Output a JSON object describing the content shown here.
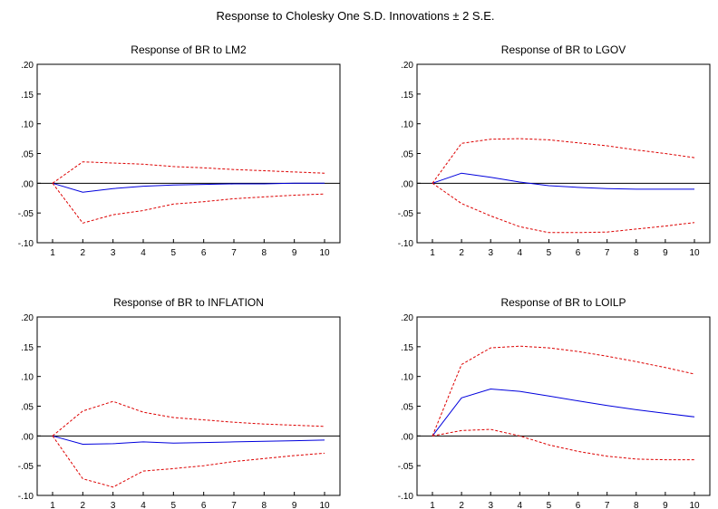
{
  "figure_title": "Response to Cholesky One S.D. Innovations ± 2 S.E.",
  "colors": {
    "response": "#0000dd",
    "bands": "#dd0000",
    "zero_line": "#000000",
    "frame": "#000000"
  },
  "chart_data": [
    {
      "type": "line",
      "title": "Response of BR to LM2",
      "x": [
        1,
        2,
        3,
        4,
        5,
        6,
        7,
        8,
        9,
        10
      ],
      "ylim": [
        -0.1,
        0.2
      ],
      "yticks": [
        ".20",
        ".15",
        ".10",
        ".05",
        ".00",
        "-.05",
        "-.10"
      ],
      "xticks": [
        "1",
        "2",
        "3",
        "4",
        "5",
        "6",
        "7",
        "8",
        "9",
        "10"
      ],
      "grid": false,
      "series": [
        {
          "role": "response",
          "style": "solid",
          "values": [
            0,
            -0.015,
            -0.009,
            -0.005,
            -0.003,
            -0.002,
            -0.001,
            -0.001,
            0.0,
            0.0
          ]
        },
        {
          "role": "upper",
          "style": "dashed",
          "values": [
            0,
            0.036,
            0.034,
            0.032,
            0.028,
            0.026,
            0.023,
            0.021,
            0.019,
            0.017
          ]
        },
        {
          "role": "lower",
          "style": "dashed",
          "values": [
            0,
            -0.067,
            -0.053,
            -0.046,
            -0.035,
            -0.031,
            -0.026,
            -0.023,
            -0.02,
            -0.018
          ]
        }
      ]
    },
    {
      "type": "line",
      "title": "Response of BR to LGOV",
      "x": [
        1,
        2,
        3,
        4,
        5,
        6,
        7,
        8,
        9,
        10
      ],
      "ylim": [
        -0.1,
        0.2
      ],
      "yticks": [
        ".20",
        ".15",
        ".10",
        ".05",
        ".00",
        "-.05",
        "-.10"
      ],
      "xticks": [
        "1",
        "2",
        "3",
        "4",
        "5",
        "6",
        "7",
        "8",
        "9",
        "10"
      ],
      "grid": false,
      "series": [
        {
          "role": "response",
          "style": "solid",
          "values": [
            0,
            0.017,
            0.01,
            0.002,
            -0.004,
            -0.007,
            -0.009,
            -0.01,
            -0.01,
            -0.01
          ]
        },
        {
          "role": "upper",
          "style": "dashed",
          "values": [
            0,
            0.067,
            0.074,
            0.075,
            0.073,
            0.068,
            0.063,
            0.056,
            0.05,
            0.043
          ]
        },
        {
          "role": "lower",
          "style": "dashed",
          "values": [
            0,
            -0.034,
            -0.055,
            -0.073,
            -0.083,
            -0.083,
            -0.082,
            -0.077,
            -0.072,
            -0.066
          ]
        }
      ]
    },
    {
      "type": "line",
      "title": "Response of BR to INFLATION",
      "x": [
        1,
        2,
        3,
        4,
        5,
        6,
        7,
        8,
        9,
        10
      ],
      "ylim": [
        -0.1,
        0.2
      ],
      "yticks": [
        ".20",
        ".15",
        ".10",
        ".05",
        ".00",
        "-.05",
        "-.10"
      ],
      "xticks": [
        "1",
        "2",
        "3",
        "4",
        "5",
        "6",
        "7",
        "8",
        "9",
        "10"
      ],
      "grid": false,
      "series": [
        {
          "role": "response",
          "style": "solid",
          "values": [
            0,
            -0.014,
            -0.013,
            -0.01,
            -0.012,
            -0.011,
            -0.01,
            -0.009,
            -0.008,
            -0.007
          ]
        },
        {
          "role": "upper",
          "style": "dashed",
          "values": [
            0,
            0.042,
            0.058,
            0.04,
            0.031,
            0.027,
            0.023,
            0.02,
            0.018,
            0.016
          ]
        },
        {
          "role": "lower",
          "style": "dashed",
          "values": [
            0,
            -0.072,
            -0.086,
            -0.059,
            -0.055,
            -0.05,
            -0.043,
            -0.038,
            -0.033,
            -0.029
          ]
        }
      ]
    },
    {
      "type": "line",
      "title": "Response of BR to LOILP",
      "x": [
        1,
        2,
        3,
        4,
        5,
        6,
        7,
        8,
        9,
        10
      ],
      "ylim": [
        -0.1,
        0.2
      ],
      "yticks": [
        ".20",
        ".15",
        ".10",
        ".05",
        ".00",
        "-.05",
        "-.10"
      ],
      "xticks": [
        "1",
        "2",
        "3",
        "4",
        "5",
        "6",
        "7",
        "8",
        "9",
        "10"
      ],
      "grid": false,
      "series": [
        {
          "role": "response",
          "style": "solid",
          "values": [
            0,
            0.064,
            0.079,
            0.075,
            0.067,
            0.059,
            0.051,
            0.044,
            0.038,
            0.032
          ]
        },
        {
          "role": "upper",
          "style": "dashed",
          "values": [
            0,
            0.12,
            0.148,
            0.151,
            0.148,
            0.142,
            0.134,
            0.125,
            0.115,
            0.104
          ]
        },
        {
          "role": "lower",
          "style": "dashed",
          "values": [
            0,
            0.009,
            0.011,
            0.0,
            -0.015,
            -0.026,
            -0.034,
            -0.039,
            -0.04,
            -0.04
          ]
        }
      ]
    }
  ]
}
